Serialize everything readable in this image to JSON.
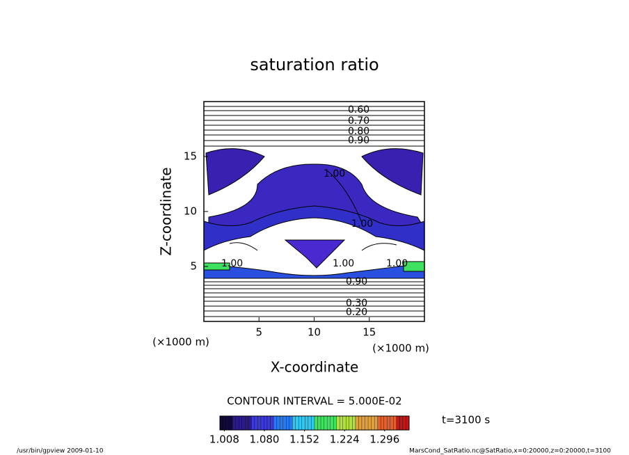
{
  "chart_data": {
    "type": "contour",
    "title": "saturation ratio",
    "xlabel": "X-coordinate",
    "ylabel": "Z-coordinate",
    "x_unit": "(×1000 m)",
    "y_unit": "(×1000 m)",
    "xlim": [
      0,
      20
    ],
    "ylim": [
      0,
      20
    ],
    "xticks": [
      5,
      10,
      15
    ],
    "yticks": [
      5,
      10,
      15
    ],
    "contour_labels": [
      "0.60",
      "0.70",
      "0.80",
      "0.90",
      "1.00",
      "1.00",
      "1.00",
      "1.00",
      "1.00",
      "0.90",
      "0.20",
      "0.30"
    ],
    "contour_interval": "CONTOUR INTERVAL = 5.000E-02",
    "colorbar": {
      "lim": [
        1.0,
        1.34
      ],
      "colors": [
        "#100838",
        "#2a1a8a",
        "#3a3ad8",
        "#2a78f0",
        "#30c8f0",
        "#40e060",
        "#b0e040",
        "#e0a040",
        "#e06030",
        "#c01818"
      ],
      "ticks": [
        1.008,
        {
          "value": 1.08,
          "label": "1.080"
        },
        1.152,
        1.224,
        1.296
      ]
    },
    "time_label": "t=3100 s",
    "footer_left": "/usr/bin/gpview  2009-01-10",
    "footer_right": "MarsCond_SatRatio.nc@SatRatio,x=0:20000,z=0:20000,t=3100"
  }
}
